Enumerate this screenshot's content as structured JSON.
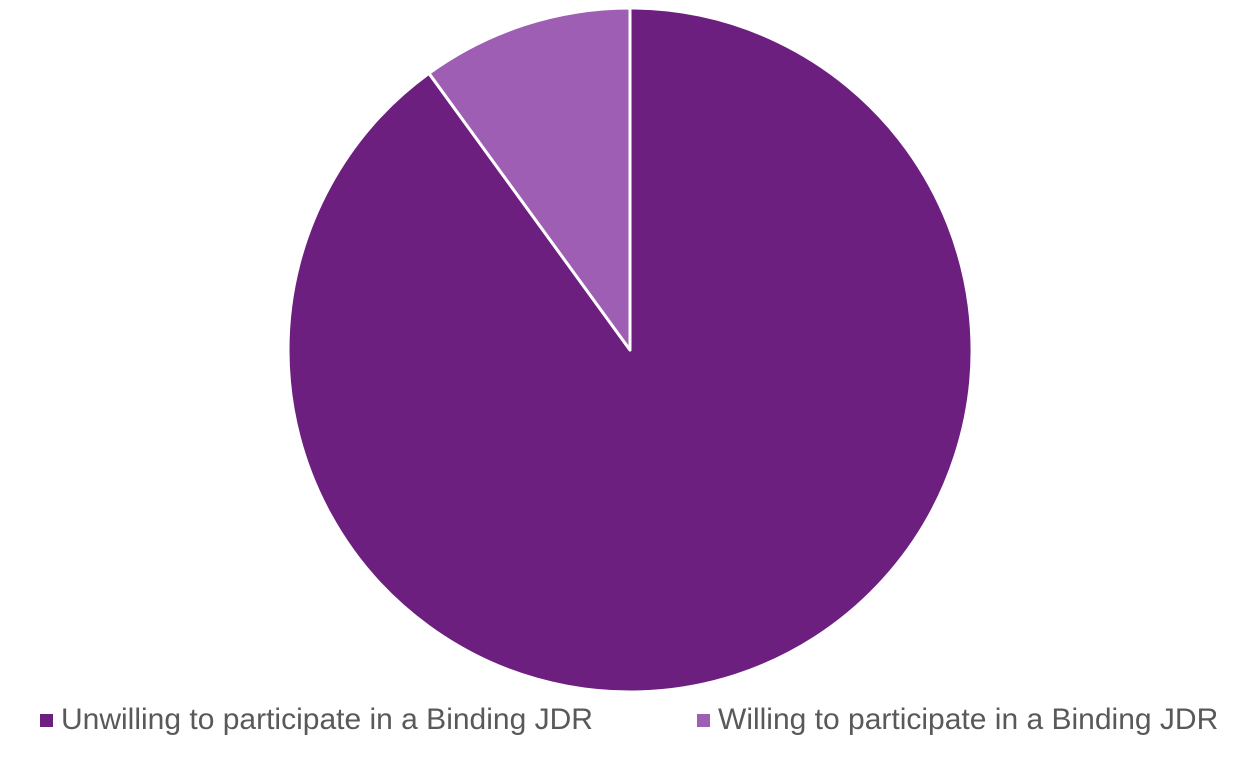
{
  "chart_data": {
    "type": "pie",
    "title": "",
    "categories": [
      "Unwilling to participate in a Binding JDR",
      "Willing to participate in a Binding JDR"
    ],
    "values": [
      90,
      10
    ],
    "colors": [
      "#6d1f80",
      "#9e5eb3"
    ],
    "start_angle": "12 o'clock, clockwise",
    "legend_position": "bottom"
  }
}
